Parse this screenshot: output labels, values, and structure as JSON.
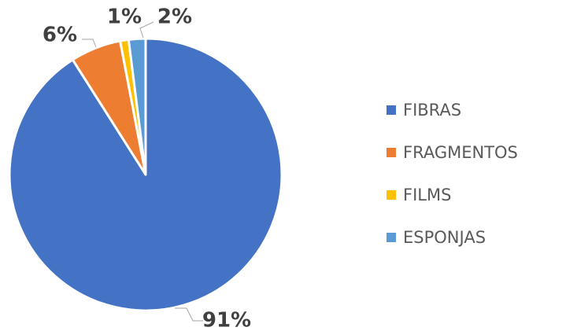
{
  "chart_data": {
    "type": "pie",
    "categories": [
      "FIBRAS",
      "FRAGMENTOS",
      "FILMS",
      "ESPONJAS"
    ],
    "values": [
      91,
      6,
      1,
      2
    ],
    "value_labels": [
      "91%",
      "6%",
      "1%",
      "2%"
    ],
    "colors": [
      "#4472c4",
      "#ed7d31",
      "#ffc000",
      "#5b9bd5"
    ],
    "legend": "right"
  }
}
